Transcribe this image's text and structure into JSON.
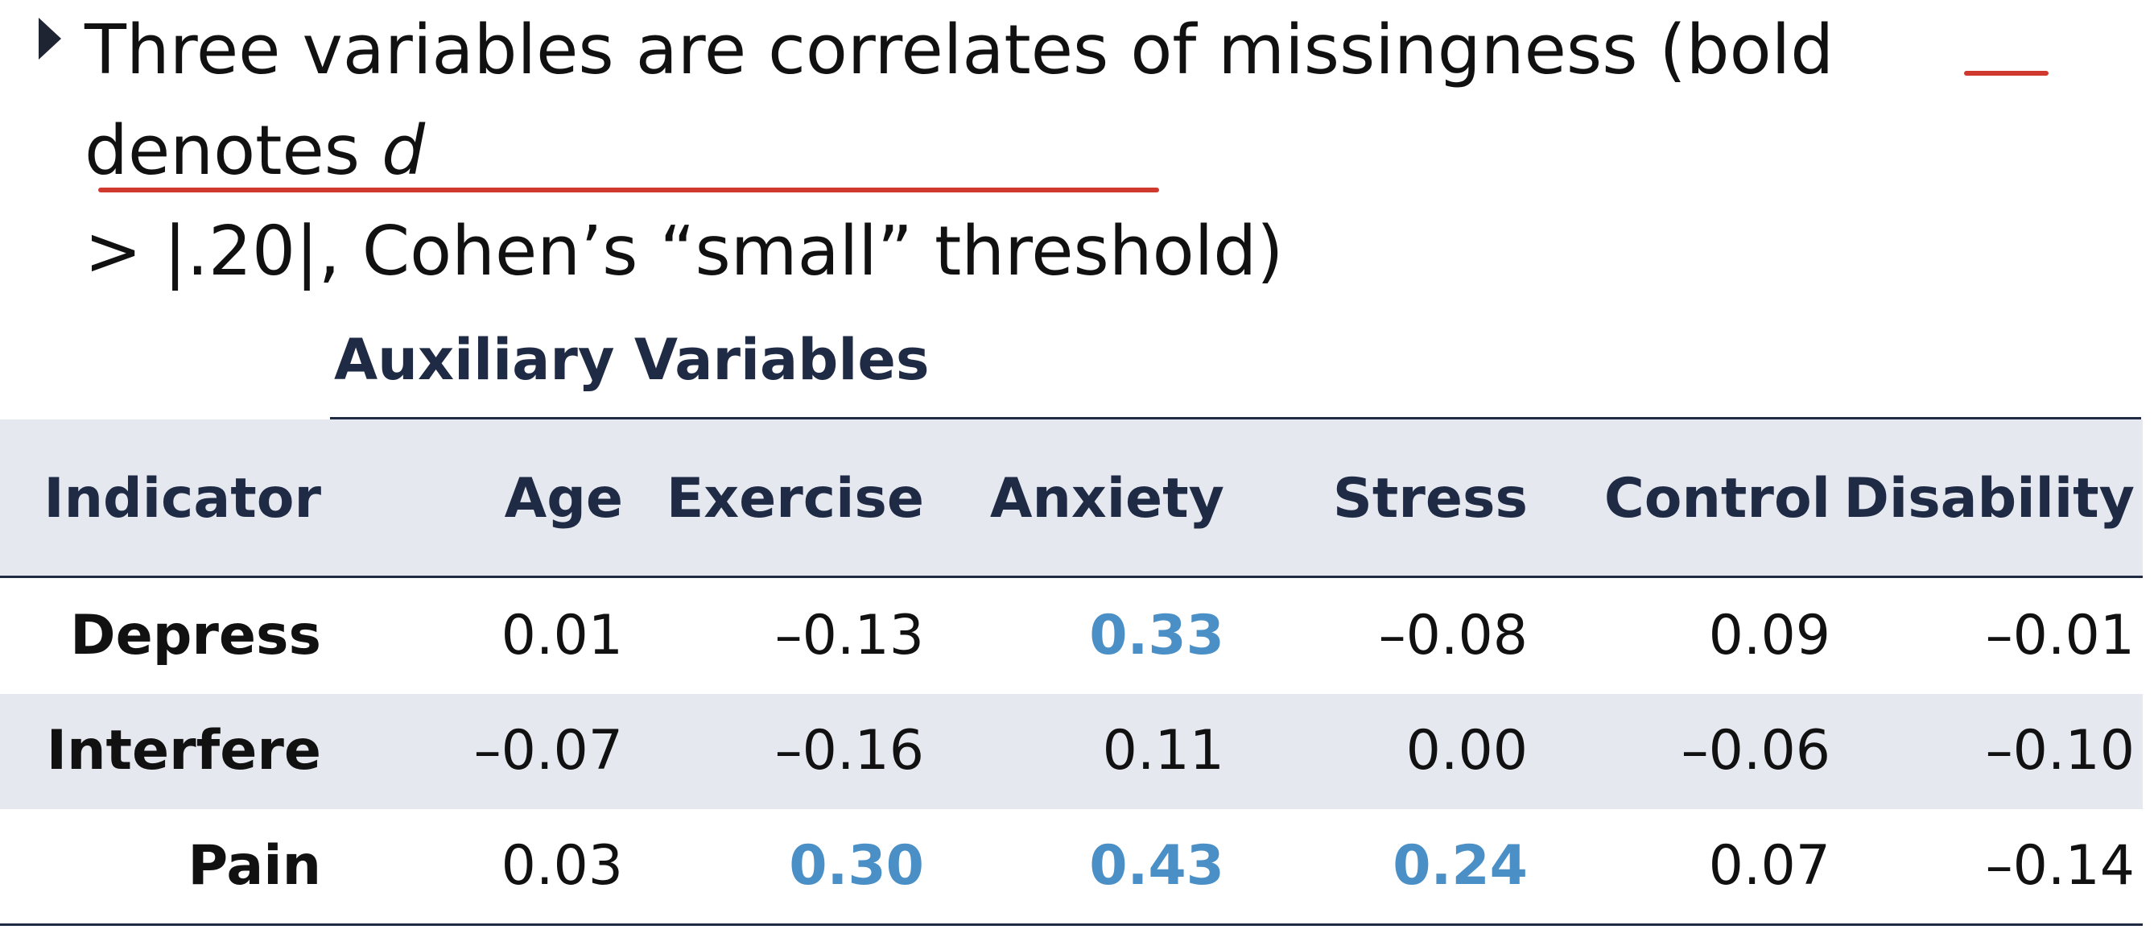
{
  "bullet": {
    "line1": "Three variables are correlates of missingness (bold denotes ",
    "d": "d",
    "line2": "> |.20|, Cohen’s “small” threshold)"
  },
  "table": {
    "group_title": "Auxiliary Variables",
    "header": [
      "Indicator",
      "Age",
      "Exercise",
      "Anxiety",
      "Stress",
      "Control",
      "Disability"
    ],
    "rows": [
      {
        "label": "Depress",
        "values": [
          "0.01",
          "–0.13",
          "0.33",
          "–0.08",
          "0.09",
          "–0.01"
        ],
        "bold": [
          false,
          false,
          true,
          false,
          false,
          false
        ]
      },
      {
        "label": "Interfere",
        "values": [
          "–0.07",
          "–0.16",
          "0.11",
          "0.00",
          "–0.06",
          "–0.10"
        ],
        "bold": [
          false,
          false,
          false,
          false,
          false,
          false
        ]
      },
      {
        "label": "Pain",
        "values": [
          "0.03",
          "0.30",
          "0.43",
          "0.24",
          "0.07",
          "–0.14"
        ],
        "bold": [
          false,
          true,
          true,
          true,
          false,
          false
        ]
      }
    ]
  },
  "colors": {
    "highlight": "#4a8fc5",
    "header_text": "#1f2a44",
    "band": "#e6e8ef",
    "annotation_red": "#d03a2e"
  }
}
